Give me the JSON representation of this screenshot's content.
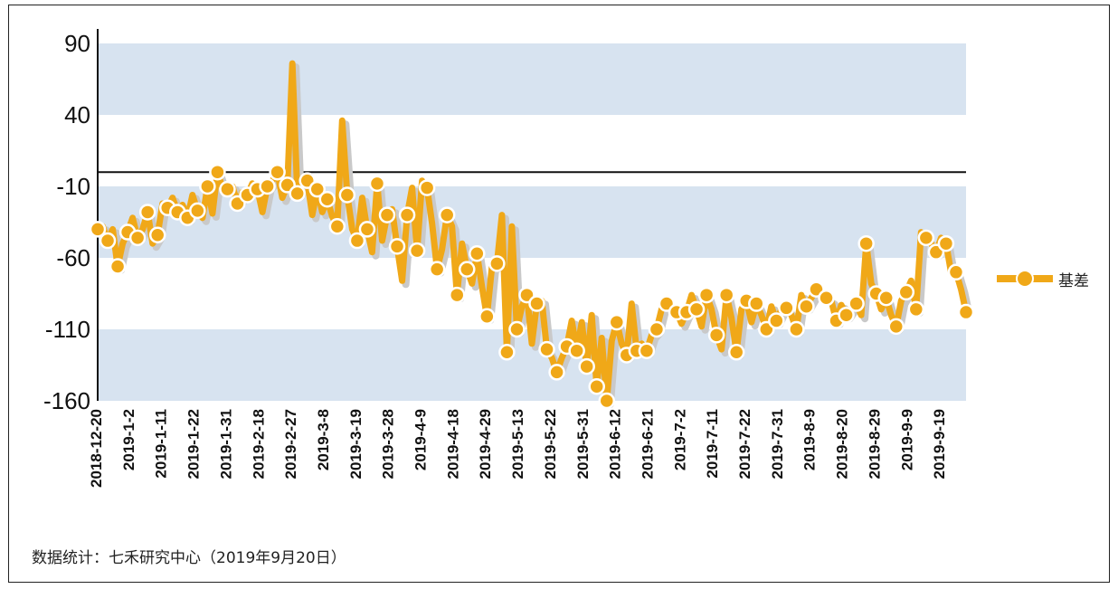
{
  "chart_data": {
    "type": "line",
    "title": "",
    "xlabel": "",
    "ylabel": "",
    "ylim": [
      -160,
      90
    ],
    "yticks": [
      90,
      40,
      -10,
      -60,
      -110,
      -160
    ],
    "zero_line": 0,
    "grid": "alternating horizontal bands",
    "legend_position": "right",
    "x_tick_labels": [
      "2018-12-20",
      "2019-1-2",
      "2019-1-11",
      "2019-1-22",
      "2019-1-31",
      "2019-2-18",
      "2019-2-27",
      "2019-3-8",
      "2019-3-19",
      "2019-3-28",
      "2019-4-9",
      "2019-4-18",
      "2019-4-29",
      "2019-5-13",
      "2019-5-22",
      "2019-5-31",
      "2019-6-12",
      "2019-6-21",
      "2019-7-2",
      "2019-7-11",
      "2019-7-22",
      "2019-7-31",
      "2019-8-9",
      "2019-8-20",
      "2019-8-29",
      "2019-9-9",
      "2019-9-19"
    ],
    "series": [
      {
        "name": "基差",
        "color": "#F0A818",
        "values": [
          -40,
          -38,
          -48,
          -40,
          -66,
          -50,
          -42,
          -32,
          -46,
          -40,
          -28,
          -50,
          -44,
          -22,
          -25,
          -18,
          -28,
          -23,
          -32,
          -16,
          -27,
          -32,
          -10,
          -29,
          0,
          -11,
          -12,
          -10,
          -22,
          -14,
          -16,
          -8,
          -12,
          -28,
          -10,
          -6,
          0,
          -18,
          -9,
          76,
          -15,
          -9,
          -6,
          -30,
          -12,
          -28,
          -19,
          -31,
          -38,
          36,
          -16,
          -40,
          -48,
          -18,
          -40,
          -56,
          -8,
          -48,
          -30,
          -26,
          -52,
          -76,
          -30,
          -11,
          -55,
          -6,
          -11,
          -36,
          -68,
          -54,
          -30,
          -38,
          -86,
          -50,
          -68,
          -78,
          -57,
          -80,
          -101,
          -66,
          -64,
          -30,
          -126,
          -38,
          -110,
          -94,
          -86,
          -120,
          -92,
          -90,
          -124,
          -130,
          -140,
          -130,
          -122,
          -104,
          -125,
          -105,
          -136,
          -100,
          -150,
          -116,
          -160,
          -118,
          -105,
          -120,
          -128,
          -92,
          -125,
          -120,
          -125,
          -114,
          -110,
          -96,
          -92,
          -96,
          -98,
          -106,
          -98,
          -86,
          -96,
          -108,
          -86,
          -96,
          -114,
          -124,
          -86,
          -102,
          -126,
          -96,
          -90,
          -105,
          -92,
          -100,
          -110,
          -94,
          -104,
          -96,
          -95,
          -100,
          -110,
          -86,
          -94,
          -88,
          -82,
          -84,
          -88,
          -90,
          -104,
          -93,
          -100,
          -95,
          -92,
          -100,
          -50,
          -78,
          -85,
          -96,
          -88,
          -100,
          -108,
          -90,
          -84,
          -76,
          -96,
          -42,
          -46,
          -50,
          -56,
          -46,
          -50,
          -70,
          -70,
          -82,
          -98
        ]
      }
    ]
  },
  "legend": {
    "label": "基差"
  },
  "source": "数据统计：七禾研究中心（2019年9月20日）"
}
